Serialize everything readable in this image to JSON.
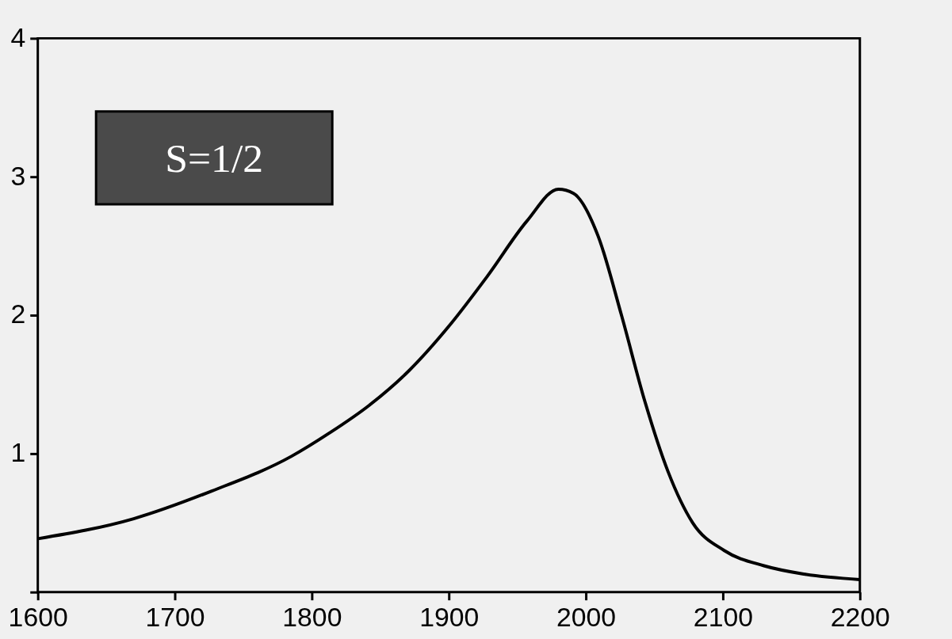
{
  "chart_data": {
    "type": "line",
    "x": [
      1600,
      1670,
      1727,
      1785,
      1813,
      1842,
      1871,
      1900,
      1928,
      1957,
      1980,
      1991,
      2009,
      2026,
      2043,
      2060,
      2078,
      2101,
      2130,
      2159,
      2200
    ],
    "series": [
      {
        "color": "#000000",
        "values": [
          0.385,
          0.53,
          0.73,
          0.98,
          1.15,
          1.35,
          1.6,
          1.92,
          2.28,
          2.68,
          2.91,
          2.88,
          2.57,
          2.0,
          1.38,
          0.87,
          0.5,
          0.3,
          0.19,
          0.13,
          0.09
        ]
      }
    ],
    "xlim": [
      1600,
      2200
    ],
    "xticks": [
      1600,
      1700,
      1800,
      1900,
      2000,
      2100,
      2200
    ],
    "ylim": [
      0,
      4
    ],
    "yticks": [
      {
        "value": 0,
        "label": null
      },
      1,
      2,
      3,
      4
    ],
    "annotations": [
      "S=1/2"
    ],
    "grid": false,
    "legend": false,
    "marker": "none",
    "line_style": "solid"
  }
}
